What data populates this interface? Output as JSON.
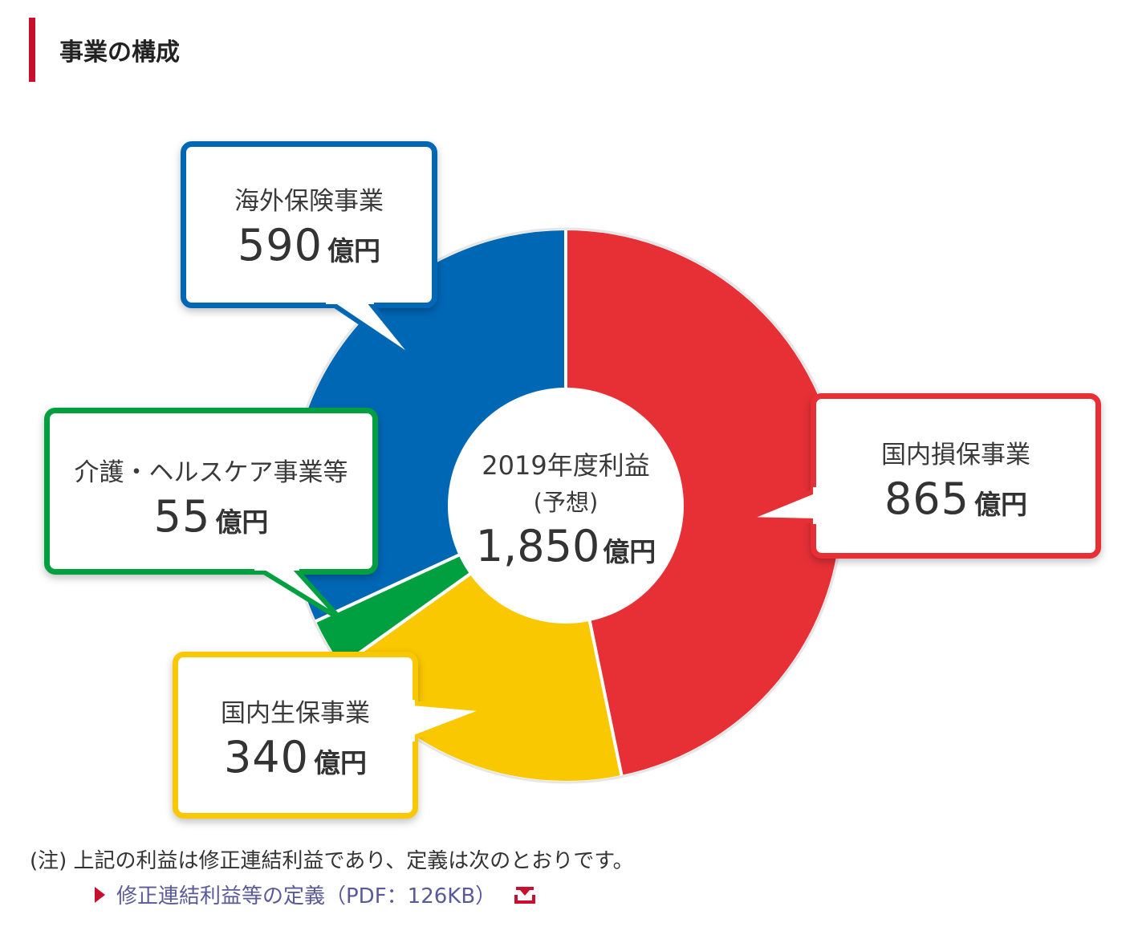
{
  "section": {
    "title": "事業の構成"
  },
  "center": {
    "line1": "2019年度利益",
    "line2": "(予想)",
    "value": "1,850",
    "unit": "億円"
  },
  "colors": {
    "accent": "#c8102e",
    "link": "#5a5a9a"
  },
  "chart_data": {
    "type": "pie",
    "total": 1850,
    "unit": "億円",
    "title": "",
    "slices": [
      {
        "name": "国内損保事業",
        "value": 865,
        "display": "865",
        "color": "#e63036"
      },
      {
        "name": "国内生保事業",
        "value": 340,
        "display": "340",
        "color": "#f9c800"
      },
      {
        "name": "介護・ヘルスケア事業等",
        "value": 55,
        "display": "55",
        "color": "#00a040"
      },
      {
        "name": "海外保険事業",
        "value": 590,
        "display": "590",
        "color": "#0067b5"
      }
    ]
  },
  "note": "(注) 上記の利益は修正連結利益であり、定義は次のとおりです。",
  "link": {
    "label": "修正連結利益等の定義（PDF：126KB）",
    "icon": "download-icon"
  }
}
